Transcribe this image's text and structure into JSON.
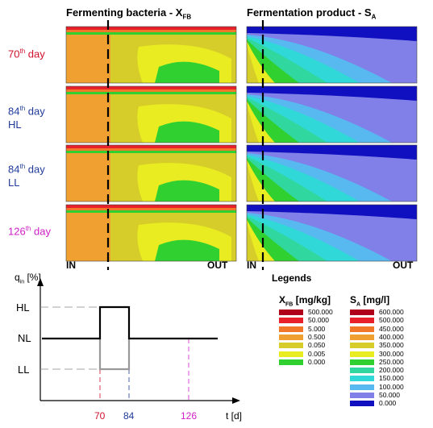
{
  "titles": {
    "left_prefix": "Fermenting bacteria - X",
    "left_sub": "FB",
    "right_prefix": "Fermentation product - S",
    "right_sub": "A"
  },
  "rows": [
    {
      "num": "70",
      "sup": "th",
      "word": "day",
      "suffix": "",
      "color": "#d0102a"
    },
    {
      "num": "84",
      "sup": "th",
      "word": "day",
      "suffix": "HL",
      "color": "#1f3a9a"
    },
    {
      "num": "84",
      "sup": "th",
      "word": "day",
      "suffix": "LL",
      "color": "#1f3a9a"
    },
    {
      "num": "126",
      "sup": "th",
      "word": "day",
      "suffix": "",
      "color": "#d020c8"
    }
  ],
  "io": {
    "in": "IN",
    "out": "OUT"
  },
  "load_plot": {
    "ylabel_main": "q",
    "ylabel_sub": "in",
    "ylabel_unit": " [%]",
    "levels": [
      "HL",
      "NL",
      "LL"
    ],
    "xlabel": "t [d]",
    "ticks": [
      {
        "label": "70",
        "color": "#d0102a"
      },
      {
        "label": "84",
        "color": "#1f3a9a"
      },
      {
        "label": "126",
        "color": "#d020c8"
      }
    ]
  },
  "legends": {
    "title": "Legends",
    "xfb": {
      "head_main": "X",
      "head_sub": "FB",
      "head_unit": " [mg/kg]",
      "items": [
        {
          "value": "500.000",
          "color": "#b0001a"
        },
        {
          "value": "50.000",
          "color": "#e8202a"
        },
        {
          "value": "5.000",
          "color": "#f07828"
        },
        {
          "value": "0.500",
          "color": "#f0a030"
        },
        {
          "value": "0.050",
          "color": "#d6cc2a"
        },
        {
          "value": "0.005",
          "color": "#e8ec20"
        },
        {
          "value": "0.000",
          "color": "#30d030"
        }
      ]
    },
    "sa": {
      "head_main": "S",
      "head_sub": "A",
      "head_unit": " [mg/l]",
      "items": [
        {
          "value": "600.000",
          "color": "#b0001a"
        },
        {
          "value": "500.000",
          "color": "#e8202a"
        },
        {
          "value": "450.000",
          "color": "#f07828"
        },
        {
          "value": "400.000",
          "color": "#f0a030"
        },
        {
          "value": "350.000",
          "color": "#d6cc2a"
        },
        {
          "value": "300.000",
          "color": "#e8ec20"
        },
        {
          "value": "250.000",
          "color": "#30d030"
        },
        {
          "value": "200.000",
          "color": "#30d8a0"
        },
        {
          "value": "150.000",
          "color": "#30d8d8"
        },
        {
          "value": "100.000",
          "color": "#58b8f0"
        },
        {
          "value": "50.000",
          "color": "#8080e8"
        },
        {
          "value": "0.000",
          "color": "#1010c0"
        }
      ]
    }
  }
}
